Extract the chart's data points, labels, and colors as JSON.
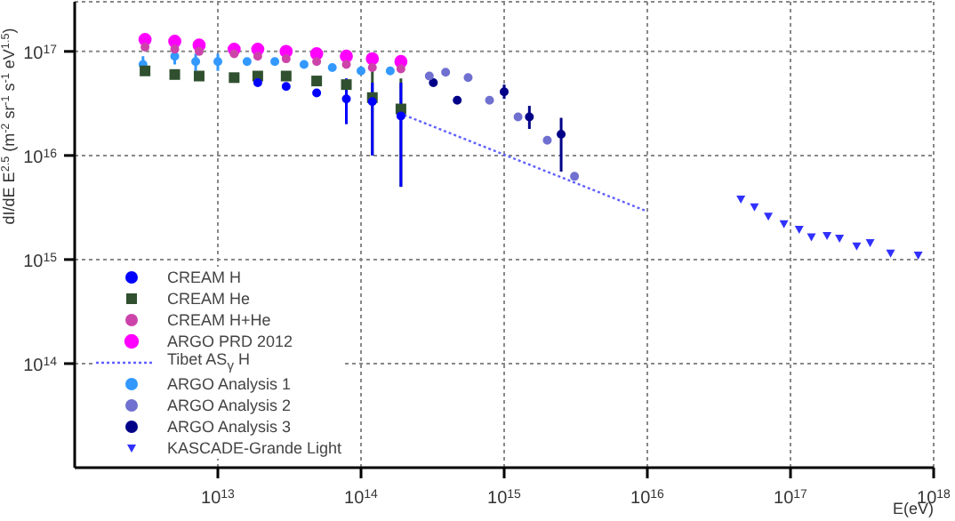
{
  "chart_data": {
    "type": "scatter",
    "xlabel": "E(eV)",
    "ylabel": "dI/dE E$^{2.5}$ (m$^{-2}$ sr$^{-1}$ s$^{-1}$ eV$^{1.5}$)",
    "log": "xy",
    "grid": true,
    "legend": "bottom left",
    "xlim": [
      1000000000000.0,
      1e+18
    ],
    "ylim": [
      10000000000000.0,
      3e+17
    ],
    "xticks": [
      {
        "value": 10000000000000.0,
        "label": "10$^{13}$"
      },
      {
        "value": 100000000000000.0,
        "label": "10$^{14}$"
      },
      {
        "value": 1000000000000000.0,
        "label": "10$^{15}$"
      },
      {
        "value": 1e+16,
        "label": "10$^{16}$"
      },
      {
        "value": 1e+17,
        "label": "10$^{17}$"
      },
      {
        "value": 1e+18,
        "label": "10$^{18}$"
      }
    ],
    "yticks": [
      {
        "value": 100000000000000.0,
        "label": "10$^{14}$"
      },
      {
        "value": 1000000000000000.0,
        "label": "10$^{15}$"
      },
      {
        "value": 1e+16,
        "label": "10$^{16}$"
      },
      {
        "value": 1e+17,
        "label": "10$^{17}$"
      }
    ],
    "series": [
      {
        "name": "CREAM H",
        "marker": "circle",
        "color": "#0000ff",
        "x": [
          19000000000000.0,
          30000000000000.0,
          49000000000000.0,
          79000000000000.0,
          120000000000000.0,
          190000000000000.0
        ],
        "values": [
          5e+16,
          4.6e+16,
          4e+16,
          3.5e+16,
          3.3e+16,
          2.4e+16
        ],
        "errors": [
          null,
          null,
          null,
          [
            2e+16,
            5.5e+16
          ],
          [
            1e+16,
            5e+16
          ],
          [
            5000000000000000.0,
            5e+16
          ]
        ]
      },
      {
        "name": "CREAM He",
        "marker": "square",
        "color": "#305030",
        "x": [
          3100000000000.0,
          5000000000000.0,
          7400000000000.0,
          13000000000000.0,
          19000000000000.0,
          30000000000000.0,
          49000000000000.0,
          79000000000000.0,
          120000000000000.0,
          190000000000000.0
        ],
        "values": [
          6.5e+16,
          6e+16,
          5.8e+16,
          5.6e+16,
          5.8e+16,
          5.8e+16,
          5.2e+16,
          4.8e+16,
          3.6e+16,
          2.8e+16
        ],
        "errors": [
          null,
          null,
          null,
          null,
          null,
          null,
          null,
          null,
          [
            1e+16,
            8.5e+16
          ],
          [
            5000000000000000.0,
            5.5e+16
          ]
        ]
      },
      {
        "name": "CREAM H+He",
        "marker": "circle",
        "color": "#cc44aa",
        "x": [
          3100000000000.0,
          5000000000000.0,
          7400000000000.0,
          13000000000000.0,
          19000000000000.0,
          30000000000000.0,
          49000000000000.0,
          79000000000000.0,
          120000000000000.0,
          190000000000000.0
        ],
        "values": [
          1.1e+17,
          1.05e+17,
          1e+17,
          9.5e+16,
          9e+16,
          8.5e+16,
          8e+16,
          7.5e+16,
          7e+16,
          6.8e+16
        ]
      },
      {
        "name": "ARGO PRD 2012",
        "marker": "circle",
        "color": "#ff00ff",
        "x": [
          3100000000000.0,
          5000000000000.0,
          7400000000000.0,
          13000000000000.0,
          19000000000000.0,
          30000000000000.0,
          49000000000000.0,
          79000000000000.0,
          120000000000000.0,
          190000000000000.0
        ],
        "values": [
          1.3e+17,
          1.25e+17,
          1.15e+17,
          1.05e+17,
          1.05e+17,
          1e+17,
          9.5e+16,
          9e+16,
          8.5e+16,
          8e+16
        ]
      },
      {
        "name": "Tibet AS$_{γ}$ H",
        "type": "line",
        "line_style": "dotted",
        "marker": "none",
        "color": "#6060ff",
        "x": [
          200000000000000.0,
          1e+16
        ],
        "values": [
          2.45e+16,
          2900000000000000.0
        ]
      },
      {
        "name": "ARGO Analysis 1",
        "marker": "circle",
        "color": "#3399ff",
        "x": [
          3000000000000.0,
          5000000000000.0,
          7000000000000.0,
          10000000000000.0,
          16000000000000.0,
          25000000000000.0,
          40000000000000.0,
          63000000000000.0,
          100000000000000.0,
          160000000000000.0
        ],
        "values": [
          7.5e+16,
          9e+16,
          8e+16,
          8e+16,
          8e+16,
          8e+16,
          7.5e+16,
          7e+16,
          6.5e+16,
          6.5e+16
        ],
        "errors": [
          [
            6e+16,
            9e+16
          ],
          [
            7.5e+16,
            1.05e+17
          ],
          [
            6.5e+16,
            9.5e+16
          ],
          [
            6.5e+16,
            9.5e+16
          ],
          null,
          null,
          null,
          null,
          null,
          null
        ]
      },
      {
        "name": "ARGO Analysis 2",
        "marker": "circle",
        "color": "#7070d0",
        "x": [
          300000000000000.0,
          390000000000000.0,
          560000000000000.0,
          790000000000000.0,
          1250000000000000.0,
          2000000000000000.0,
          3100000000000000.0
        ],
        "values": [
          5.8e+16,
          6.3e+16,
          5.6e+16,
          3.4e+16,
          2.35e+16,
          1.4e+16,
          6300000000000000.0
        ]
      },
      {
        "name": "ARGO Analysis 3",
        "marker": "circle",
        "color": "#000088",
        "x": [
          320000000000000.0,
          470000000000000.0,
          1000000000000000.0,
          1500000000000000.0,
          2500000000000000.0
        ],
        "values": [
          5e+16,
          3.4e+16,
          4.1e+16,
          2.35e+16,
          1.6e+16
        ],
        "errors": [
          null,
          null,
          [
            3.5e+16,
            4.8e+16
          ],
          [
            1.8e+16,
            3e+16
          ],
          [
            7000000000000000.0,
            2.3e+16
          ]
        ]
      },
      {
        "name": "KASCADE-Grande Light",
        "marker": "triangle",
        "color": "#3030ff",
        "x": [
          4.5e+16,
          5.6e+16,
          7e+16,
          9e+16,
          1.15e+17,
          1.4e+17,
          1.8e+17,
          2.2e+17,
          2.9e+17,
          3.6e+17,
          5e+17,
          7.8e+17
        ],
        "values": [
          3800000000000000.0,
          3200000000000000.0,
          2600000000000000.0,
          2200000000000000.0,
          1950000000000000.0,
          1650000000000000.0,
          1700000000000000.0,
          1600000000000000.0,
          1350000000000000.0,
          1450000000000000.0,
          1150000000000000.0,
          1100000000000000.0
        ]
      }
    ]
  }
}
